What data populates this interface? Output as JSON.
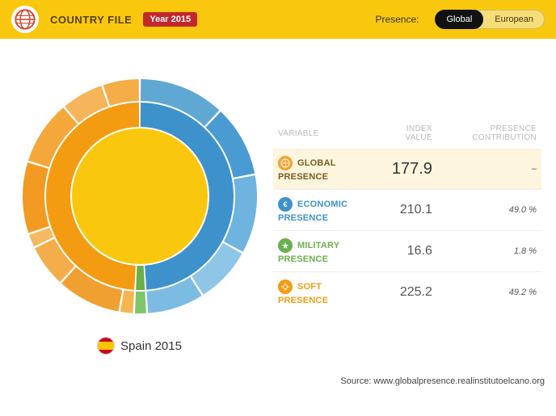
{
  "header": {
    "title": "COUNTRY FILE",
    "year_badge": "Year 2015",
    "presence_label": "Presence:",
    "toggle": {
      "global": "Global",
      "european": "European",
      "active": "global"
    }
  },
  "chart": {
    "caption": "Spain 2015",
    "center_color": "#f9c80e",
    "inner_ring": [
      {
        "name": "economic",
        "pct": 49.0,
        "color": "#3e92cc"
      },
      {
        "name": "military",
        "pct": 1.8,
        "color": "#6ab04c"
      },
      {
        "name": "soft",
        "pct": 49.2,
        "color": "#f39c12"
      }
    ],
    "outer_ring": [
      {
        "pct": 12,
        "color": "#5fa8d3"
      },
      {
        "pct": 10,
        "color": "#4a9bd1"
      },
      {
        "pct": 11,
        "color": "#6fb4de"
      },
      {
        "pct": 8,
        "color": "#8fc5e6"
      },
      {
        "pct": 8,
        "color": "#7cbce2"
      },
      {
        "pct": 1.8,
        "color": "#7cc76b"
      },
      {
        "pct": 2,
        "color": "#f5b652"
      },
      {
        "pct": 9,
        "color": "#f0a030"
      },
      {
        "pct": 6,
        "color": "#f3ad4a"
      },
      {
        "pct": 2,
        "color": "#f6b860"
      },
      {
        "pct": 10,
        "color": "#f29a22"
      },
      {
        "pct": 9,
        "color": "#f4a83c"
      },
      {
        "pct": 6,
        "color": "#f6b55a"
      },
      {
        "pct": 5.2,
        "color": "#f5ad48"
      }
    ],
    "outer_radius": 145,
    "outer_inner": 118,
    "inner_outer": 116,
    "inner_inner": 86,
    "gap_deg": 1.0
  },
  "table": {
    "headers": {
      "variable": "VARIABLE",
      "index": "INDEX VALUE",
      "contribution": "PRESENCE CONTRIBUTION"
    },
    "rows": [
      {
        "id": "global",
        "label": "GLOBAL PRESENCE",
        "index": "177.9",
        "contribution": "–",
        "color": "#f39c12",
        "label_color": "#7a5c20",
        "icon_bg": "#f6a22e",
        "highlight": true
      },
      {
        "id": "economic",
        "label": "ECONOMIC PRESENCE",
        "index": "210.1",
        "contribution": "49.0 %",
        "color": "#3e92cc",
        "label_color": "#3e92cc",
        "icon_bg": "#3e92cc"
      },
      {
        "id": "military",
        "label": "MILITARY PRESENCE",
        "index": "16.6",
        "contribution": "1.8 %",
        "color": "#6ab04c",
        "label_color": "#6ab04c",
        "icon_bg": "#6ab04c"
      },
      {
        "id": "soft",
        "label": "SOFT PRESENCE",
        "index": "225.2",
        "contribution": "49.2 %",
        "color": "#f39c12",
        "label_color": "#f39c12",
        "icon_bg": "#f39c12"
      }
    ]
  },
  "footer": {
    "source": "Source: www.globalpresence.realinstitutoelcano.org"
  }
}
